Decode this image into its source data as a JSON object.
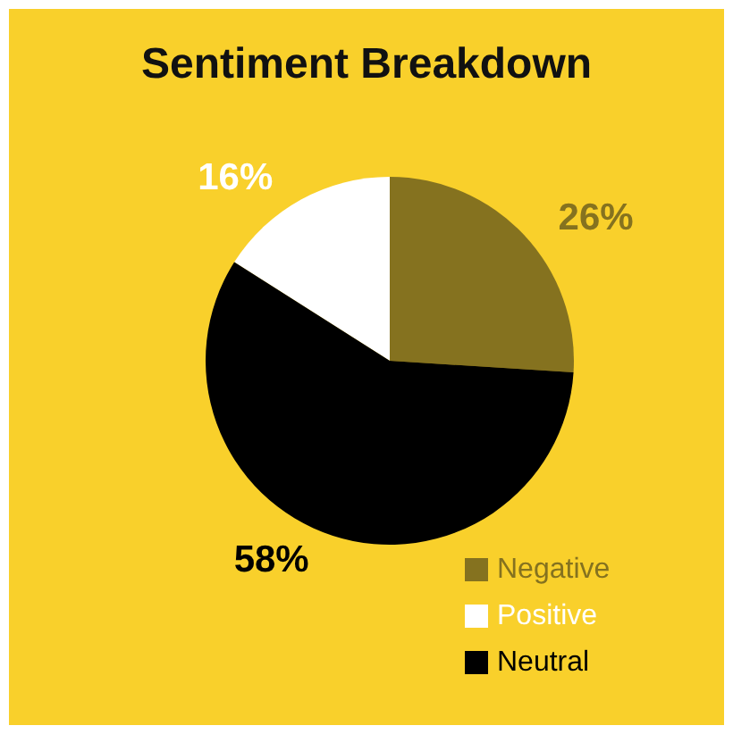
{
  "chart_data": {
    "type": "pie",
    "title": "Sentiment Breakdown",
    "categories": [
      "Negative",
      "Positive",
      "Neutral"
    ],
    "values": [
      26,
      16,
      58
    ],
    "value_labels": [
      "26%",
      "16%",
      "58%"
    ],
    "colors": [
      "#85721f",
      "#ffffff",
      "#000000"
    ],
    "legend": "bottom right"
  }
}
